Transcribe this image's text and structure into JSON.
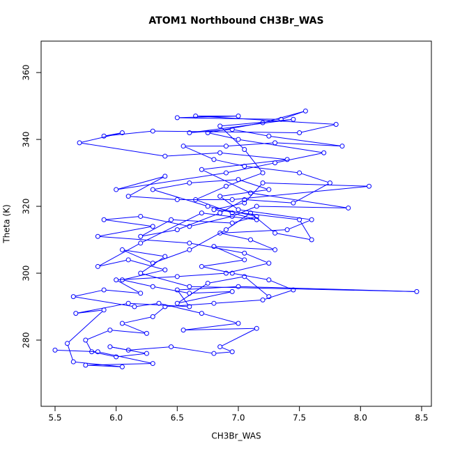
{
  "chart_data": {
    "type": "scatter",
    "connect": true,
    "marker": "open-circle",
    "color": "#0000ff",
    "title": "ATOM1 Northbound CH3Br_WAS",
    "xlabel": "CH3Br_WAS",
    "ylabel": "Theta (K)",
    "x": [
      5.5,
      5.85,
      6.3,
      5.75,
      6.05,
      5.65,
      5.6,
      5.9,
      5.67,
      6.1,
      6.6,
      6.5,
      7.0,
      8.46,
      6.6,
      6.2,
      6.4,
      6.05,
      6.3,
      6.6,
      6.9,
      7.1,
      7.3,
      7.6,
      7.5,
      6.8,
      7.05,
      7.2,
      8.07,
      6.95,
      6.5,
      6.1,
      6.4,
      6.0,
      6.9,
      7.3,
      7.7,
      7.0,
      6.75,
      7.2,
      7.55,
      7.35,
      6.5,
      7.0,
      6.65,
      7.8,
      7.5,
      6.3,
      5.9,
      6.05,
      5.7,
      6.4,
      6.85,
      7.4,
      6.7,
      7.1,
      7.9,
      7.15,
      6.95,
      6.6,
      6.2,
      5.9,
      6.3,
      5.85,
      6.6,
      7.05,
      7.25,
      6.9,
      6.5,
      6.0,
      6.2,
      5.9,
      5.65,
      6.15,
      6.35,
      6.7,
      7.0,
      6.55,
      7.15,
      6.85,
      6.95,
      6.8,
      6.45,
      6.1,
      5.95,
      6.25,
      6.0,
      5.8,
      5.75,
      5.95,
      6.25,
      6.05,
      6.3,
      6.4,
      6.8,
      7.2,
      7.45,
      7.25,
      6.95,
      6.7,
      7.05,
      6.8,
      7.3,
      7.1,
      6.85,
      7.4,
      7.6,
      7.0,
      6.85,
      7.25,
      7.0,
      6.6,
      6.3,
      6.75,
      7.15,
      6.95,
      6.45,
      6.2,
      6.5,
      6.85,
      7.05,
      7.45,
      7.75,
      7.5,
      7.05,
      6.8,
      6.55,
      6.9,
      7.3,
      7.85,
      7.25,
      6.95,
      6.6,
      7.45,
      6.85,
      7.05,
      7.2,
      6.9,
      6.65,
      6.95,
      7.15,
      6.7,
      6.2,
      5.85,
      6.1,
      6.4,
      6.05,
      6.3,
      6.6,
      6.95,
      6.5,
      6.75,
      7.05,
      7.25
    ],
    "y": [
      277,
      276.5,
      273,
      272.5,
      272,
      273.5,
      279,
      289,
      288,
      291,
      290,
      295,
      296,
      294.5,
      296,
      300,
      305,
      307,
      303,
      307,
      313,
      318,
      312,
      310,
      316,
      319,
      321,
      327,
      326,
      322,
      322,
      323,
      329,
      325,
      330,
      333,
      336,
      340,
      342,
      345,
      348.5,
      346,
      346.5,
      347,
      347,
      344.5,
      342,
      342.5,
      341,
      342,
      339,
      335,
      336,
      334,
      331,
      324,
      319.5,
      320,
      317,
      314,
      317,
      316,
      314,
      311,
      309,
      306,
      303,
      300,
      299,
      298,
      294,
      295,
      293,
      290,
      291,
      288,
      285,
      283,
      283.5,
      278,
      276.5,
      276,
      278,
      277,
      278,
      276,
      275,
      276.5,
      280,
      283,
      282,
      285,
      287,
      290,
      291,
      292,
      295,
      298,
      300,
      302,
      304,
      308,
      307,
      310,
      312,
      313,
      316,
      319,
      323,
      325,
      328,
      327,
      325,
      320,
      317,
      315,
      316,
      311,
      313,
      318,
      322,
      321,
      327,
      330,
      332,
      334,
      338,
      338,
      339,
      338,
      341,
      343,
      342,
      346,
      344,
      337,
      330,
      326,
      322,
      318,
      316,
      318,
      309,
      302,
      304,
      301,
      298,
      296,
      294,
      294.5,
      291,
      297,
      299,
      293
    ],
    "xlim": [
      5.386,
      8.58
    ],
    "ylim": [
      260.2,
      369.4
    ],
    "xticks": [
      5.5,
      {
        "value": 6,
        "label": "6.0"
      },
      6.5,
      {
        "value": 7,
        "label": "7.0"
      },
      7.5,
      {
        "value": 8,
        "label": "8.0"
      },
      8.5
    ],
    "yticks": [
      280,
      300,
      320,
      340,
      360
    ]
  }
}
